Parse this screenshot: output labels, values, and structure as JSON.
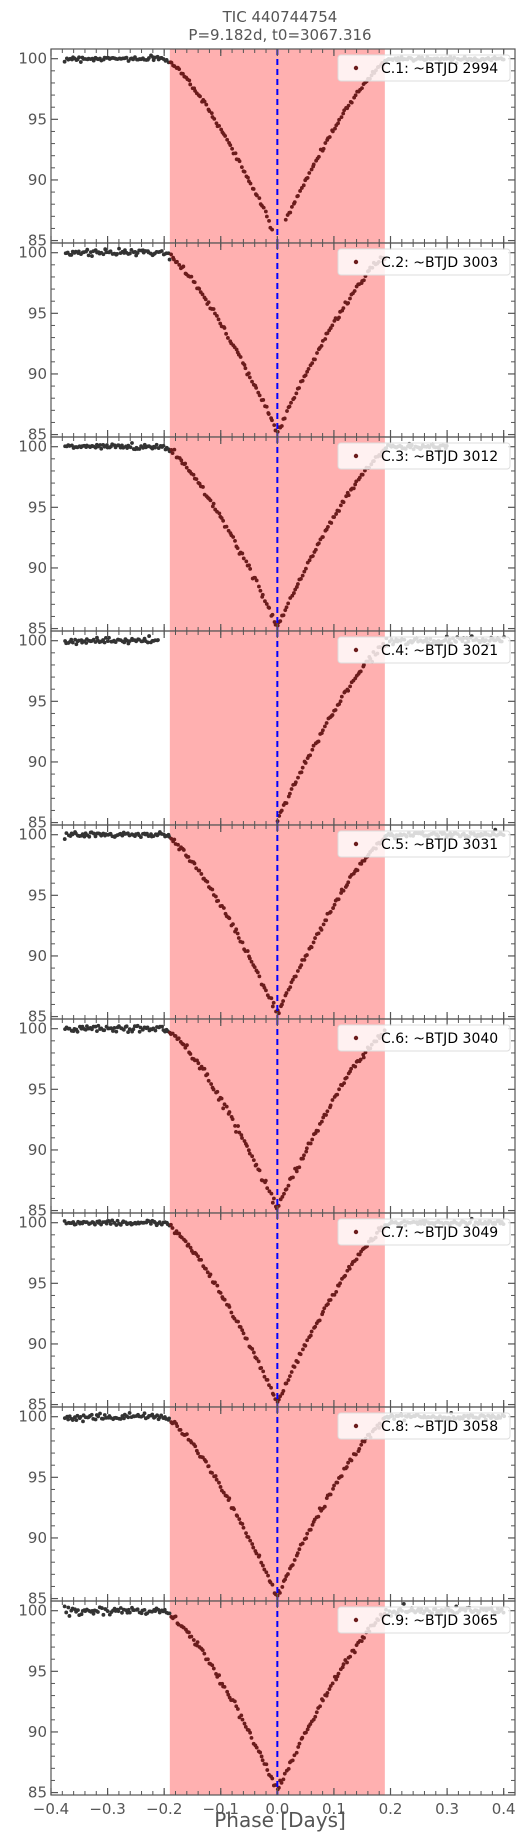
{
  "figure": {
    "title_line1": "TIC 440744754",
    "title_line2": "P=9.182d, t0=3067.316"
  },
  "chart_data": {
    "type": "scatter",
    "xlabel": "Phase [Days]",
    "xlim": [
      -0.4,
      0.42
    ],
    "ylim": [
      84.8,
      100.8
    ],
    "x_ticks": [
      -0.4,
      -0.3,
      -0.2,
      -0.1,
      0.0,
      0.1,
      0.2,
      0.3,
      0.4
    ],
    "x_tick_labels": [
      "−0.4",
      "−0.3",
      "−0.2",
      "−0.1",
      "0.0",
      "0.1",
      "0.2",
      "0.3",
      "0.4"
    ],
    "y_ticks": [
      85,
      90,
      95,
      100
    ],
    "y_tick_labels": [
      "85",
      "90",
      "95",
      "100"
    ],
    "shaded_region": [
      -0.19,
      0.19
    ],
    "vline_x": 0.0,
    "legend_position": "top-right",
    "colors": {
      "shade": "#ff9a9a",
      "vline": "#0000ff",
      "points_out": "#333333",
      "points_in": "#6b1c1c",
      "axis": "#555555"
    },
    "model": {
      "baseline": 100.0,
      "depth": 14.8,
      "half_width": 0.2,
      "shape_power": 1.35
    },
    "panels": [
      {
        "label": "C.1: ~BTJD 2994",
        "coverage": [
          [
            -0.375,
            -0.01
          ],
          [
            0.015,
            0.4
          ]
        ],
        "noise": 0.09
      },
      {
        "label": "C.2: ~BTJD 3003",
        "coverage": [
          [
            -0.375,
            0.19
          ]
        ],
        "noise": 0.12
      },
      {
        "label": "C.3: ~BTJD 3012",
        "coverage": [
          [
            -0.375,
            0.3
          ]
        ],
        "noise": 0.12
      },
      {
        "label": "C.4: ~BTJD 3021",
        "coverage": [
          [
            -0.375,
            -0.21
          ],
          [
            0.0,
            0.4
          ]
        ],
        "noise": 0.12
      },
      {
        "label": "C.5: ~BTJD 3031",
        "coverage": [
          [
            -0.375,
            0.4
          ]
        ],
        "noise": 0.12
      },
      {
        "label": "C.6: ~BTJD 3040",
        "coverage": [
          [
            -0.375,
            0.19
          ]
        ],
        "noise": 0.16
      },
      {
        "label": "C.7: ~BTJD 3049",
        "coverage": [
          [
            -0.375,
            0.4
          ]
        ],
        "noise": 0.1
      },
      {
        "label": "C.8: ~BTJD 3058",
        "coverage": [
          [
            -0.375,
            0.4
          ]
        ],
        "noise": 0.12
      },
      {
        "label": "C.9: ~BTJD 3065",
        "coverage": [
          [
            -0.375,
            0.4
          ]
        ],
        "noise": 0.15
      }
    ]
  }
}
